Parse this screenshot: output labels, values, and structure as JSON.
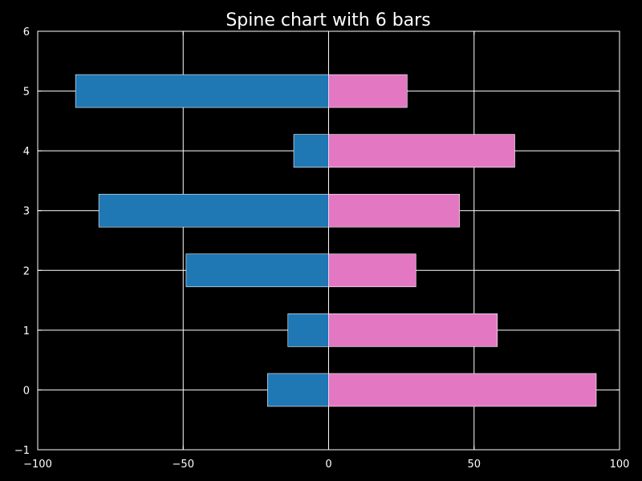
{
  "chart_data": {
    "type": "bar",
    "orientation": "horizontal",
    "title": "Spine chart with 6 bars",
    "xlabel": "",
    "ylabel": "",
    "categories": [
      0,
      1,
      2,
      3,
      4,
      5
    ],
    "series": [
      {
        "color": "#1f77b4",
        "values": [
          -21,
          -14,
          -49,
          -79,
          -12,
          -87
        ]
      },
      {
        "color": "#e377c2",
        "values": [
          92,
          58,
          30,
          45,
          64,
          27
        ]
      }
    ],
    "xlim": [
      -100,
      100
    ],
    "ylim": [
      -1,
      6
    ],
    "xticks": [
      "−100",
      "−50",
      "0",
      "50",
      "100"
    ],
    "xtick_values": [
      -100,
      -50,
      0,
      50,
      100
    ],
    "yticks": [
      "−1",
      "0",
      "1",
      "2",
      "3",
      "4",
      "5",
      "6"
    ],
    "ytick_values": [
      -1,
      0,
      1,
      2,
      3,
      4,
      5,
      6
    ],
    "grid": true,
    "background": "#000000",
    "foreground": "#ffffff"
  }
}
